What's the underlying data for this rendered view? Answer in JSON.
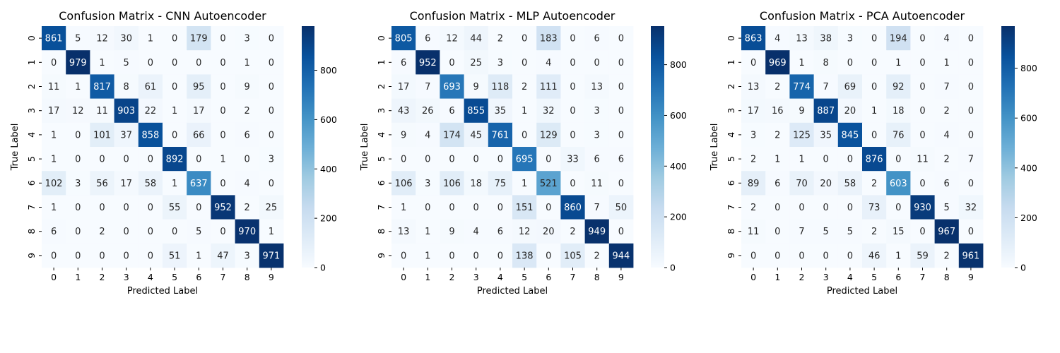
{
  "colormap": {
    "name": "Blues",
    "stops": [
      "#f7fbff",
      "#deebf7",
      "#c6dbef",
      "#9ecae1",
      "#6baed6",
      "#4292c6",
      "#2171b5",
      "#08519c",
      "#08306b"
    ]
  },
  "chart_data": [
    {
      "type": "heatmap",
      "title": "Confusion Matrix - CNN Autoencoder",
      "xlabel": "Predicted Label",
      "ylabel": "True Label",
      "x_ticks": [
        "0",
        "1",
        "2",
        "3",
        "4",
        "5",
        "6",
        "7",
        "8",
        "9"
      ],
      "y_ticks": [
        "0",
        "1",
        "2",
        "3",
        "4",
        "5",
        "6",
        "7",
        "8",
        "9"
      ],
      "colorbar": {
        "range": [
          0,
          979
        ],
        "ticks": [
          0,
          200,
          400,
          600,
          800
        ]
      },
      "matrix": [
        [
          861,
          5,
          12,
          30,
          1,
          0,
          179,
          0,
          3,
          0
        ],
        [
          0,
          979,
          1,
          5,
          0,
          0,
          0,
          0,
          1,
          0
        ],
        [
          11,
          1,
          817,
          8,
          61,
          0,
          95,
          0,
          9,
          0
        ],
        [
          17,
          12,
          11,
          903,
          22,
          1,
          17,
          0,
          2,
          0
        ],
        [
          1,
          0,
          101,
          37,
          858,
          0,
          66,
          0,
          6,
          0
        ],
        [
          1,
          0,
          0,
          0,
          0,
          892,
          0,
          1,
          0,
          3
        ],
        [
          102,
          3,
          56,
          17,
          58,
          1,
          637,
          0,
          4,
          0
        ],
        [
          1,
          0,
          0,
          0,
          0,
          55,
          0,
          952,
          2,
          25
        ],
        [
          6,
          0,
          2,
          0,
          0,
          0,
          5,
          0,
          970,
          1
        ],
        [
          0,
          0,
          0,
          0,
          0,
          51,
          1,
          47,
          3,
          971
        ]
      ]
    },
    {
      "type": "heatmap",
      "title": "Confusion Matrix - MLP Autoencoder",
      "xlabel": "Predicted Label",
      "ylabel": "True Label",
      "x_ticks": [
        "0",
        "1",
        "2",
        "3",
        "4",
        "5",
        "6",
        "7",
        "8",
        "9"
      ],
      "y_ticks": [
        "0",
        "1",
        "2",
        "3",
        "4",
        "5",
        "6",
        "7",
        "8",
        "9"
      ],
      "colorbar": {
        "range": [
          0,
          952
        ],
        "ticks": [
          0,
          200,
          400,
          600,
          800
        ]
      },
      "matrix": [
        [
          805,
          6,
          12,
          44,
          2,
          0,
          183,
          0,
          6,
          0
        ],
        [
          6,
          952,
          0,
          25,
          3,
          0,
          4,
          0,
          0,
          0
        ],
        [
          17,
          7,
          693,
          9,
          118,
          2,
          111,
          0,
          13,
          0
        ],
        [
          43,
          26,
          6,
          855,
          35,
          1,
          32,
          0,
          3,
          0
        ],
        [
          9,
          4,
          174,
          45,
          761,
          0,
          129,
          0,
          3,
          0
        ],
        [
          0,
          0,
          0,
          0,
          0,
          695,
          0,
          33,
          6,
          6
        ],
        [
          106,
          3,
          106,
          18,
          75,
          1,
          521,
          0,
          11,
          0
        ],
        [
          1,
          0,
          0,
          0,
          0,
          151,
          0,
          860,
          7,
          50
        ],
        [
          13,
          1,
          9,
          4,
          6,
          12,
          20,
          2,
          949,
          0
        ],
        [
          0,
          1,
          0,
          0,
          0,
          138,
          0,
          105,
          2,
          944
        ]
      ]
    },
    {
      "type": "heatmap",
      "title": "Confusion Matrix - PCA Autoencoder",
      "xlabel": "Predicted Label",
      "ylabel": "True Label",
      "x_ticks": [
        "0",
        "1",
        "2",
        "3",
        "4",
        "5",
        "6",
        "7",
        "8",
        "9"
      ],
      "y_ticks": [
        "0",
        "1",
        "2",
        "3",
        "4",
        "5",
        "6",
        "7",
        "8",
        "9"
      ],
      "colorbar": {
        "range": [
          0,
          969
        ],
        "ticks": [
          0,
          200,
          400,
          600,
          800
        ]
      },
      "matrix": [
        [
          863,
          4,
          13,
          38,
          3,
          0,
          194,
          0,
          4,
          0
        ],
        [
          0,
          969,
          1,
          8,
          0,
          0,
          1,
          0,
          1,
          0
        ],
        [
          13,
          2,
          774,
          7,
          69,
          0,
          92,
          0,
          7,
          0
        ],
        [
          17,
          16,
          9,
          887,
          20,
          1,
          18,
          0,
          2,
          0
        ],
        [
          3,
          2,
          125,
          35,
          845,
          0,
          76,
          0,
          4,
          0
        ],
        [
          2,
          1,
          1,
          0,
          0,
          876,
          0,
          11,
          2,
          7
        ],
        [
          89,
          6,
          70,
          20,
          58,
          2,
          603,
          0,
          6,
          0
        ],
        [
          2,
          0,
          0,
          0,
          0,
          73,
          0,
          930,
          5,
          32
        ],
        [
          11,
          0,
          7,
          5,
          5,
          2,
          15,
          0,
          967,
          0
        ],
        [
          0,
          0,
          0,
          0,
          0,
          46,
          1,
          59,
          2,
          961
        ]
      ]
    }
  ]
}
